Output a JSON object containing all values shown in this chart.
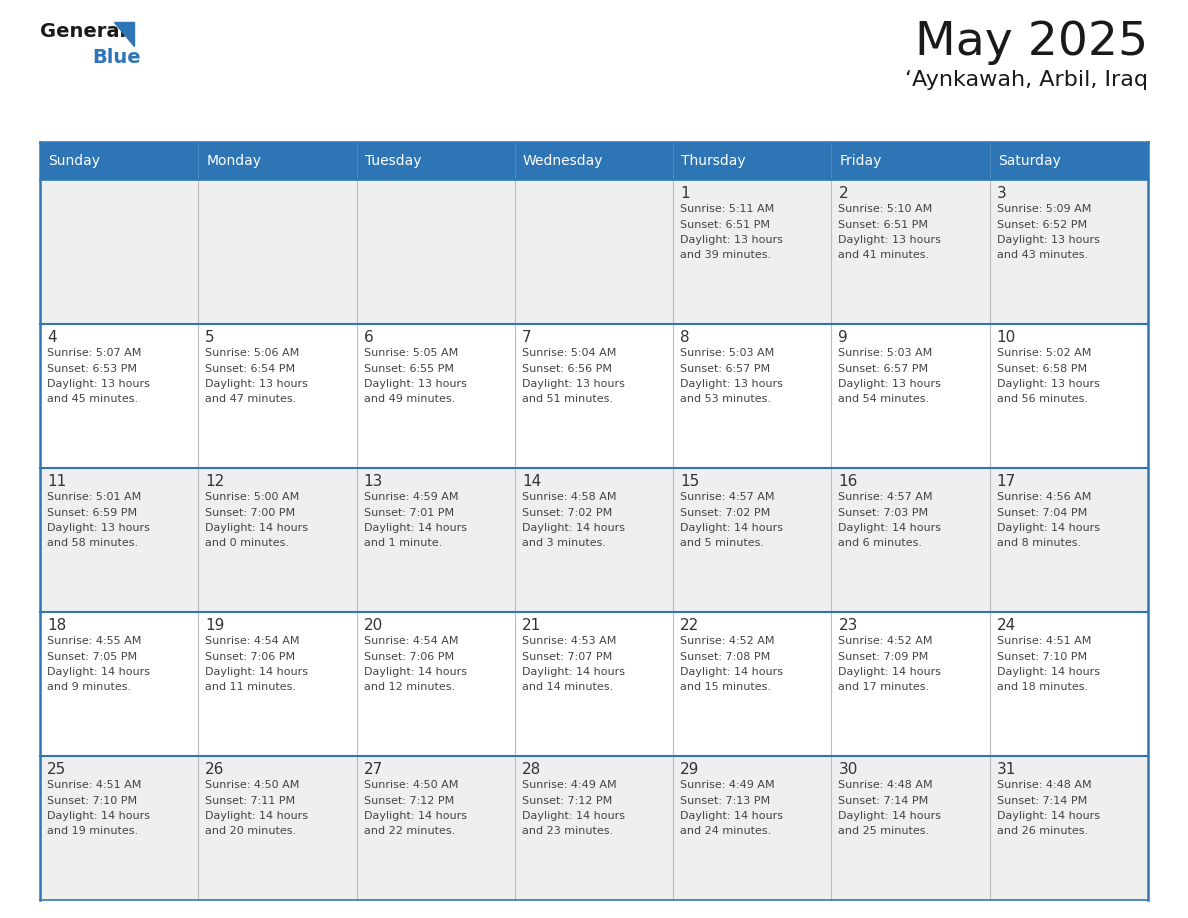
{
  "title": "May 2025",
  "subtitle": "‘Aynkawah, Arbil, Iraq",
  "days_of_week": [
    "Sunday",
    "Monday",
    "Tuesday",
    "Wednesday",
    "Thursday",
    "Friday",
    "Saturday"
  ],
  "header_bg": "#2E75B6",
  "header_text": "#FFFFFF",
  "row_bg_odd": "#EFEFEF",
  "row_bg_even": "#FFFFFF",
  "cell_text_color": "#444444",
  "day_num_color": "#333333",
  "border_color": "#2E75B6",
  "grid_line_color": "#BBBBBB",
  "calendar": [
    [
      {
        "day": null
      },
      {
        "day": null
      },
      {
        "day": null
      },
      {
        "day": null
      },
      {
        "day": 1,
        "sunrise": "5:11 AM",
        "sunset": "6:51 PM",
        "daylight_h": "13 hours",
        "daylight_m": "and 39 minutes."
      },
      {
        "day": 2,
        "sunrise": "5:10 AM",
        "sunset": "6:51 PM",
        "daylight_h": "13 hours",
        "daylight_m": "and 41 minutes."
      },
      {
        "day": 3,
        "sunrise": "5:09 AM",
        "sunset": "6:52 PM",
        "daylight_h": "13 hours",
        "daylight_m": "and 43 minutes."
      }
    ],
    [
      {
        "day": 4,
        "sunrise": "5:07 AM",
        "sunset": "6:53 PM",
        "daylight_h": "13 hours",
        "daylight_m": "and 45 minutes."
      },
      {
        "day": 5,
        "sunrise": "5:06 AM",
        "sunset": "6:54 PM",
        "daylight_h": "13 hours",
        "daylight_m": "and 47 minutes."
      },
      {
        "day": 6,
        "sunrise": "5:05 AM",
        "sunset": "6:55 PM",
        "daylight_h": "13 hours",
        "daylight_m": "and 49 minutes."
      },
      {
        "day": 7,
        "sunrise": "5:04 AM",
        "sunset": "6:56 PM",
        "daylight_h": "13 hours",
        "daylight_m": "and 51 minutes."
      },
      {
        "day": 8,
        "sunrise": "5:03 AM",
        "sunset": "6:57 PM",
        "daylight_h": "13 hours",
        "daylight_m": "and 53 minutes."
      },
      {
        "day": 9,
        "sunrise": "5:03 AM",
        "sunset": "6:57 PM",
        "daylight_h": "13 hours",
        "daylight_m": "and 54 minutes."
      },
      {
        "day": 10,
        "sunrise": "5:02 AM",
        "sunset": "6:58 PM",
        "daylight_h": "13 hours",
        "daylight_m": "and 56 minutes."
      }
    ],
    [
      {
        "day": 11,
        "sunrise": "5:01 AM",
        "sunset": "6:59 PM",
        "daylight_h": "13 hours",
        "daylight_m": "and 58 minutes."
      },
      {
        "day": 12,
        "sunrise": "5:00 AM",
        "sunset": "7:00 PM",
        "daylight_h": "14 hours",
        "daylight_m": "and 0 minutes."
      },
      {
        "day": 13,
        "sunrise": "4:59 AM",
        "sunset": "7:01 PM",
        "daylight_h": "14 hours",
        "daylight_m": "and 1 minute."
      },
      {
        "day": 14,
        "sunrise": "4:58 AM",
        "sunset": "7:02 PM",
        "daylight_h": "14 hours",
        "daylight_m": "and 3 minutes."
      },
      {
        "day": 15,
        "sunrise": "4:57 AM",
        "sunset": "7:02 PM",
        "daylight_h": "14 hours",
        "daylight_m": "and 5 minutes."
      },
      {
        "day": 16,
        "sunrise": "4:57 AM",
        "sunset": "7:03 PM",
        "daylight_h": "14 hours",
        "daylight_m": "and 6 minutes."
      },
      {
        "day": 17,
        "sunrise": "4:56 AM",
        "sunset": "7:04 PM",
        "daylight_h": "14 hours",
        "daylight_m": "and 8 minutes."
      }
    ],
    [
      {
        "day": 18,
        "sunrise": "4:55 AM",
        "sunset": "7:05 PM",
        "daylight_h": "14 hours",
        "daylight_m": "and 9 minutes."
      },
      {
        "day": 19,
        "sunrise": "4:54 AM",
        "sunset": "7:06 PM",
        "daylight_h": "14 hours",
        "daylight_m": "and 11 minutes."
      },
      {
        "day": 20,
        "sunrise": "4:54 AM",
        "sunset": "7:06 PM",
        "daylight_h": "14 hours",
        "daylight_m": "and 12 minutes."
      },
      {
        "day": 21,
        "sunrise": "4:53 AM",
        "sunset": "7:07 PM",
        "daylight_h": "14 hours",
        "daylight_m": "and 14 minutes."
      },
      {
        "day": 22,
        "sunrise": "4:52 AM",
        "sunset": "7:08 PM",
        "daylight_h": "14 hours",
        "daylight_m": "and 15 minutes."
      },
      {
        "day": 23,
        "sunrise": "4:52 AM",
        "sunset": "7:09 PM",
        "daylight_h": "14 hours",
        "daylight_m": "and 17 minutes."
      },
      {
        "day": 24,
        "sunrise": "4:51 AM",
        "sunset": "7:10 PM",
        "daylight_h": "14 hours",
        "daylight_m": "and 18 minutes."
      }
    ],
    [
      {
        "day": 25,
        "sunrise": "4:51 AM",
        "sunset": "7:10 PM",
        "daylight_h": "14 hours",
        "daylight_m": "and 19 minutes."
      },
      {
        "day": 26,
        "sunrise": "4:50 AM",
        "sunset": "7:11 PM",
        "daylight_h": "14 hours",
        "daylight_m": "and 20 minutes."
      },
      {
        "day": 27,
        "sunrise": "4:50 AM",
        "sunset": "7:12 PM",
        "daylight_h": "14 hours",
        "daylight_m": "and 22 minutes."
      },
      {
        "day": 28,
        "sunrise": "4:49 AM",
        "sunset": "7:12 PM",
        "daylight_h": "14 hours",
        "daylight_m": "and 23 minutes."
      },
      {
        "day": 29,
        "sunrise": "4:49 AM",
        "sunset": "7:13 PM",
        "daylight_h": "14 hours",
        "daylight_m": "and 24 minutes."
      },
      {
        "day": 30,
        "sunrise": "4:48 AM",
        "sunset": "7:14 PM",
        "daylight_h": "14 hours",
        "daylight_m": "and 25 minutes."
      },
      {
        "day": 31,
        "sunrise": "4:48 AM",
        "sunset": "7:14 PM",
        "daylight_h": "14 hours",
        "daylight_m": "and 26 minutes."
      }
    ]
  ]
}
